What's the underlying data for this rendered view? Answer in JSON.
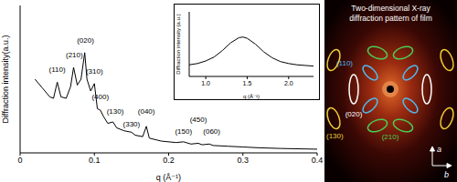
{
  "chart_data": [
    {
      "type": "line",
      "x_label": "q (Å⁻¹)",
      "y_label": "Diffraction intensity(a.u.)",
      "color": "#000000",
      "x": [
        0.02,
        0.03,
        0.04,
        0.045,
        0.05,
        0.055,
        0.062,
        0.068,
        0.072,
        0.077,
        0.082,
        0.087,
        0.09,
        0.095,
        0.1,
        0.104,
        0.108,
        0.112,
        0.118,
        0.125,
        0.13,
        0.14,
        0.15,
        0.155,
        0.165,
        0.17,
        0.174,
        0.19,
        0.21,
        0.22,
        0.23,
        0.24,
        0.245,
        0.255,
        0.26,
        0.28,
        0.3,
        0.32,
        0.35,
        0.4
      ],
      "values": [
        50,
        44,
        38,
        37,
        48,
        38,
        37,
        45,
        58,
        46,
        50,
        68,
        50,
        42,
        47,
        30,
        29,
        25,
        20,
        21,
        17,
        15,
        14,
        12,
        11,
        18,
        10,
        8,
        7,
        7.5,
        6,
        6.5,
        5.5,
        6,
        5,
        4.5,
        4,
        3.5,
        3,
        2.5
      ],
      "xlim": [
        0,
        0.4
      ],
      "xticks": [
        0,
        0.1,
        0.2,
        0.3,
        0.4
      ],
      "ylim": [
        0,
        100
      ],
      "tick_labels": "x",
      "annotations": [
        {
          "text": "(110)",
          "x": 0.05,
          "y": 56
        },
        {
          "text": "(210)",
          "x": 0.073,
          "y": 66
        },
        {
          "text": "(020)",
          "x": 0.088,
          "y": 76
        },
        {
          "text": "(310)",
          "x": 0.1,
          "y": 55
        },
        {
          "text": "(400)",
          "x": 0.108,
          "y": 38
        },
        {
          "text": "(130)",
          "x": 0.128,
          "y": 28
        },
        {
          "text": "(330)",
          "x": 0.15,
          "y": 19
        },
        {
          "text": "(040)",
          "x": 0.17,
          "y": 28
        },
        {
          "text": "(150)",
          "x": 0.22,
          "y": 14
        },
        {
          "text": "(450)",
          "x": 0.24,
          "y": 22
        },
        {
          "text": "(060)",
          "x": 0.258,
          "y": 14
        }
      ]
    },
    {
      "type": "line",
      "x_label": "q (Å⁻¹)",
      "y_label": "Diffraction intensity (a.u.)",
      "color": "#000000",
      "x": [
        0.8,
        0.9,
        1.0,
        1.1,
        1.2,
        1.3,
        1.4,
        1.45,
        1.5,
        1.6,
        1.7,
        1.8,
        1.9,
        2.0,
        2.1,
        2.2,
        2.3
      ],
      "values": [
        18,
        20,
        24,
        30,
        40,
        52,
        60,
        61,
        59,
        50,
        38,
        29,
        23,
        20,
        18,
        17,
        16
      ],
      "xlim": [
        0.8,
        2.3
      ],
      "xticks": [
        {
          "value": 1,
          "label": "1.0"
        },
        {
          "value": 1.5,
          "label": "1.5"
        },
        {
          "value": 2,
          "label": "2.0"
        }
      ],
      "ylim": [
        0,
        100
      ],
      "tick_labels": "x"
    }
  ],
  "diagram": {
    "title_lines": [
      "Two-dimensional X-ray",
      "diffraction pattern of film"
    ],
    "rings": [
      {
        "label": "(110)",
        "color": "#4fb8ee"
      },
      {
        "label": "(020)",
        "color": "#ffffff"
      },
      {
        "label": "(210)",
        "color": "#4ccc55"
      },
      {
        "label": "(130)",
        "color": "#eecc33"
      }
    ],
    "axes": [
      "a",
      "b"
    ]
  }
}
